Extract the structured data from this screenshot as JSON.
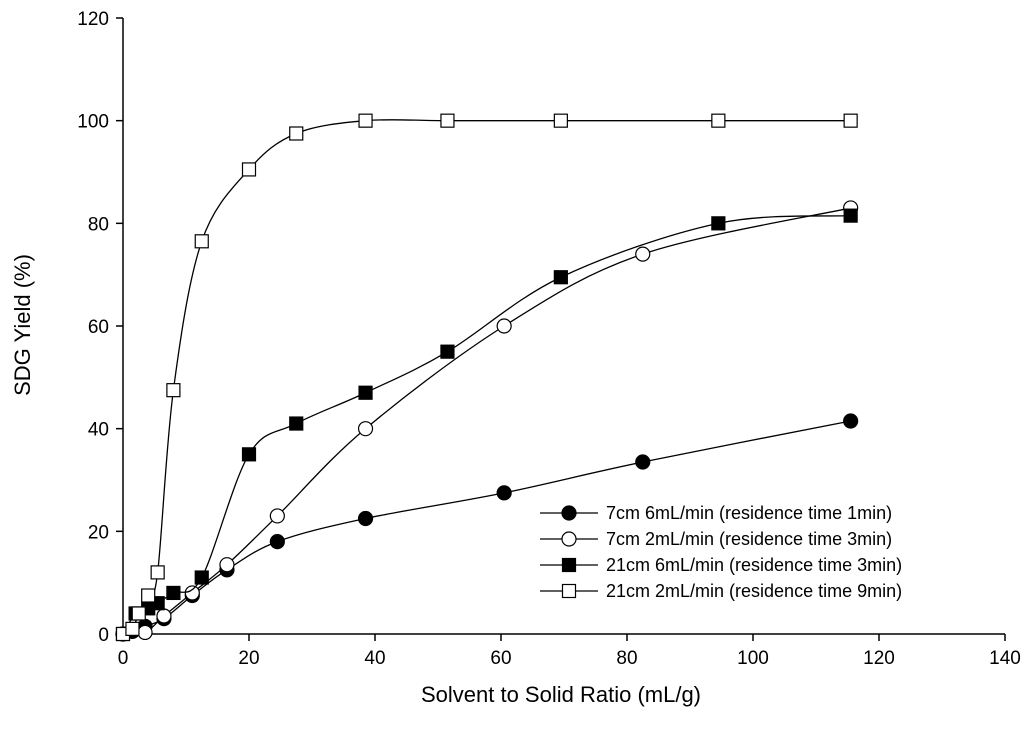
{
  "chart_data": {
    "type": "line",
    "title": "",
    "xlabel": "Solvent to Solid Ratio (mL/g)",
    "ylabel": "SDG Yield (%)",
    "xlim": [
      0,
      140
    ],
    "ylim": [
      0,
      120
    ],
    "xticks": [
      0,
      20,
      40,
      60,
      80,
      100,
      120,
      140
    ],
    "yticks": [
      0,
      20,
      40,
      60,
      80,
      100,
      120
    ],
    "grid": false,
    "legend_position": "bottom-right",
    "series": [
      {
        "name": "7cm 6mL/min (residence time 1min)",
        "marker": "filled-circle",
        "x": [
          0,
          1.5,
          3.5,
          6.5,
          11,
          16.5,
          24.5,
          38.5,
          60.5,
          82.5,
          115.5
        ],
        "y": [
          0,
          0.5,
          1.5,
          3,
          7.5,
          12.5,
          18,
          22.5,
          27.5,
          33.5,
          41.5
        ]
      },
      {
        "name": "7cm 2mL/min (residence time 3min)",
        "marker": "open-circle",
        "x": [
          0,
          3.5,
          6.5,
          11,
          16.5,
          24.5,
          38.5,
          60.5,
          82.5,
          115.5
        ],
        "y": [
          0,
          0.3,
          3.5,
          8,
          13.5,
          23,
          40,
          60,
          74,
          83
        ]
      },
      {
        "name": "21cm 6mL/min (residence time 3min)",
        "marker": "filled-square",
        "x": [
          0,
          2,
          4,
          5.5,
          8,
          12.5,
          20,
          27.5,
          38.5,
          51.5,
          69.5,
          94.5,
          115.5
        ],
        "y": [
          0,
          4,
          5,
          6,
          8,
          11,
          35,
          41,
          47,
          55,
          69.5,
          80,
          81.5
        ]
      },
      {
        "name": "21cm 2mL/min (residence time 9min)",
        "marker": "open-square",
        "x": [
          0,
          1.5,
          2.5,
          4,
          5.5,
          8,
          12.5,
          20,
          27.5,
          38.5,
          51.5,
          69.5,
          94.5,
          115.5
        ],
        "y": [
          0,
          1,
          4,
          7.5,
          12,
          47.5,
          76.5,
          90.5,
          97.5,
          100,
          100,
          100,
          100,
          100
        ]
      }
    ]
  }
}
